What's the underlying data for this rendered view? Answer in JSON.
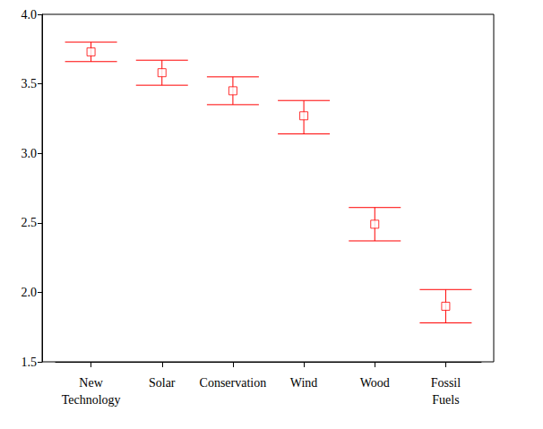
{
  "chart_data": {
    "type": "scatter",
    "categories": [
      "New Technology",
      "Solar",
      "Conservation",
      "Wind",
      "Wood",
      "Fossil Fuels"
    ],
    "values": [
      3.73,
      3.58,
      3.45,
      3.27,
      2.49,
      1.9
    ],
    "error_bars": [
      [
        3.66,
        3.8
      ],
      [
        3.49,
        3.67
      ],
      [
        3.35,
        3.55
      ],
      [
        3.14,
        3.38
      ],
      [
        2.37,
        2.61
      ],
      [
        1.78,
        2.02
      ]
    ],
    "color": "#ff0000",
    "marker": "square",
    "ylim": [
      1.5,
      4
    ],
    "yticks": [
      1.5,
      {
        "value": 2,
        "label": "2.0"
      },
      2.5,
      {
        "value": 3,
        "label": "3.0"
      },
      3.5,
      {
        "value": 4,
        "label": "4.0"
      }
    ],
    "grid": false
  }
}
